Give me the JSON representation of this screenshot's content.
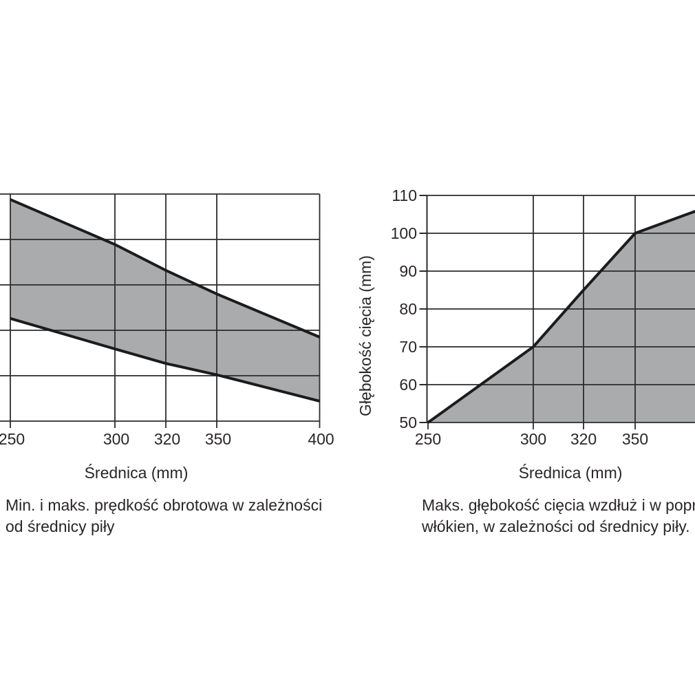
{
  "colors": {
    "background": "#ffffff",
    "grid_line": "#2d2a2b",
    "data_line": "#1c1c1c",
    "area_fill": "#a9abad",
    "text": "#2a2627"
  },
  "chart_data": [
    {
      "type": "area",
      "variant": "band-between-min-and-max",
      "caption": "Min. i maks. prędkość obrotowa w zależności\nod średnicy piły",
      "xlabel": "Średnica (mm)",
      "x_ticks": [
        {
          "label": "250",
          "value": 250
        },
        {
          "label": "300",
          "value": 300
        },
        {
          "label": "320",
          "value": 320
        },
        {
          "label": "350",
          "value": 350
        },
        {
          "label": "400",
          "value": 400
        }
      ],
      "y_axis_labels_visible": false,
      "left_edge_clipped": true,
      "y_units": "gridline intervals above x-axis (y-axis tick labels are cut off at the left edge of the screenshot)",
      "y_gridline_rows": 5,
      "grid": true,
      "series": [
        {
          "name": "maks. prędkość obrotowa (upper bound)",
          "x": [
            250,
            300,
            320,
            350,
            400
          ],
          "y_grid": [
            4.88,
            3.89,
            3.32,
            2.8,
            1.85
          ]
        },
        {
          "name": "min. prędkość obrotowa (lower bound)",
          "x": [
            250,
            300,
            320,
            350,
            400
          ],
          "y_grid": [
            2.26,
            1.59,
            1.27,
            1.02,
            0.44
          ]
        }
      ]
    },
    {
      "type": "area",
      "caption": "Maks. głębokość cięcia wzdłuż i w poprzek\nwłókien, w zależności od średnicy piły.",
      "xlabel": "Średnica (mm)",
      "ylabel": "Głębokość cięcia (mm)",
      "x_ticks": [
        {
          "label": "250",
          "value": 250
        },
        {
          "label": "300",
          "value": 300
        },
        {
          "label": "320",
          "value": 320
        },
        {
          "label": "350",
          "value": 350
        }
      ],
      "y_ticks": [
        110,
        100,
        90,
        80,
        70,
        60,
        50
      ],
      "ylim": [
        50,
        110
      ],
      "grid": true,
      "right_edge_clipped": true,
      "points": [
        [
          250,
          50
        ],
        [
          300,
          70
        ],
        [
          320,
          85
        ],
        [
          350,
          100
        ],
        [
          380,
          106
        ]
      ]
    }
  ]
}
